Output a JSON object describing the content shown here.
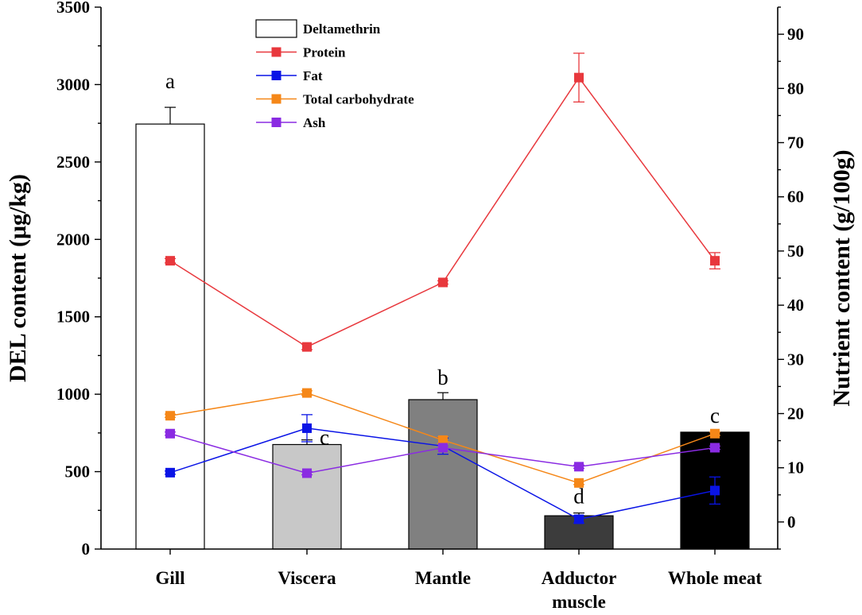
{
  "chart_data": {
    "type": "bar",
    "categories": [
      [
        "Gill"
      ],
      [
        "Viscera"
      ],
      [
        "Mantle"
      ],
      [
        "Adductor",
        "muscle"
      ],
      [
        "Whole meat"
      ]
    ],
    "left_axis": {
      "label": "DEL content (μg/kg)",
      "ylim": [
        0,
        3500
      ],
      "ticks": [
        0,
        500,
        1000,
        1500,
        2000,
        2500,
        3000,
        3500
      ]
    },
    "right_axis": {
      "label": "Nutrient content (g/100g)",
      "ylim": [
        -5,
        95
      ],
      "ticks": [
        0,
        10,
        20,
        30,
        40,
        50,
        60,
        70,
        80,
        90
      ]
    },
    "bars": {
      "name": "Deltamethrin",
      "values": [
        2745,
        675,
        965,
        215,
        755
      ],
      "errors": [
        108,
        30,
        45,
        18,
        0
      ],
      "letters": [
        "a",
        "c",
        "b",
        "d",
        "c"
      ],
      "colors": [
        "#ffffff",
        "#c8c8c8",
        "#808080",
        "#3c3c3c",
        "#000000"
      ]
    },
    "series": [
      {
        "name": "Protein",
        "axis": "right",
        "color": "#e8383d",
        "values": [
          48.2,
          32.3,
          44.2,
          82.0,
          48.2
        ],
        "errors": [
          0.4,
          0.5,
          0.3,
          4.5,
          1.5
        ]
      },
      {
        "name": "Fat",
        "axis": "right",
        "color": "#0a14e6",
        "values": [
          9.1,
          17.3,
          14.0,
          0.5,
          5.8
        ],
        "errors": [
          0.3,
          2.5,
          1.5,
          0.7,
          2.5
        ]
      },
      {
        "name": "Total carbohydrate",
        "axis": "right",
        "color": "#f58718",
        "values": [
          19.6,
          23.8,
          15.1,
          7.2,
          16.3
        ],
        "errors": [
          0.3,
          0.4,
          0.6,
          0.3,
          0.3
        ]
      },
      {
        "name": "Ash",
        "axis": "right",
        "color": "#8a2be2",
        "values": [
          16.3,
          9.0,
          13.7,
          10.2,
          13.7
        ],
        "errors": [
          0.3,
          0.3,
          0.3,
          0.3,
          0.3
        ]
      }
    ]
  }
}
